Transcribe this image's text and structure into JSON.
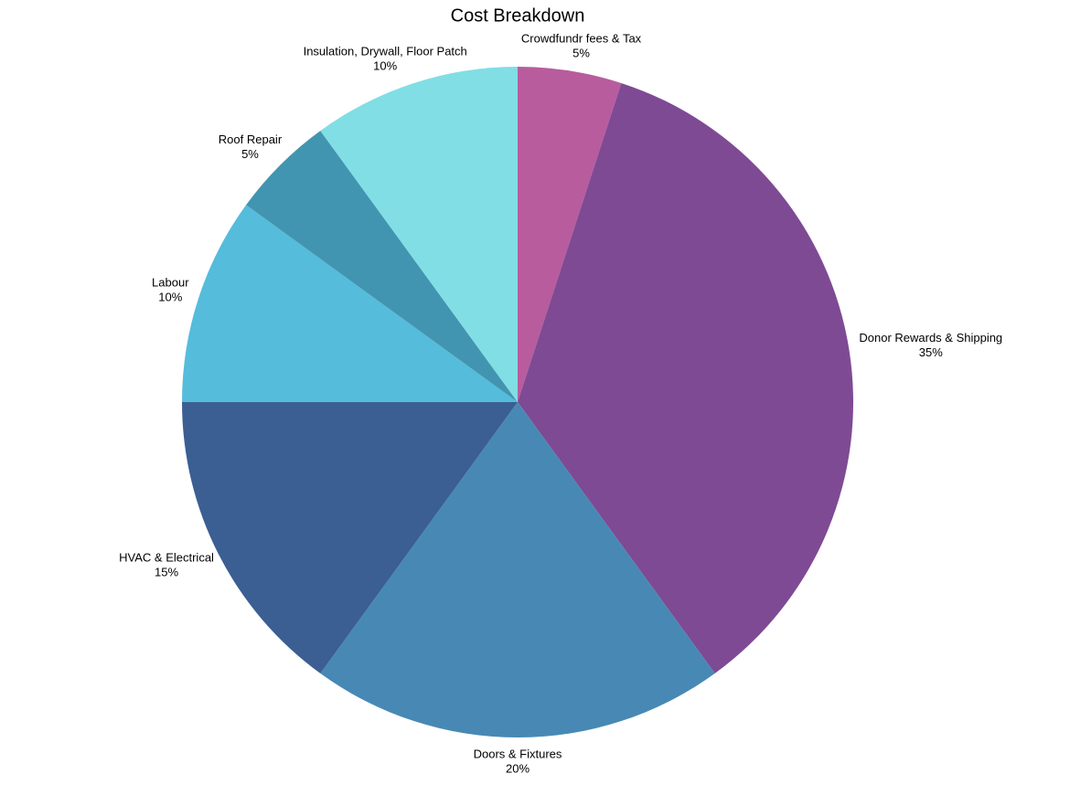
{
  "chart_data": {
    "type": "pie",
    "title": "Cost Breakdown",
    "categories": [
      "Crowdfundr fees & Tax",
      "Donor Rewards & Shipping",
      "Doors & Fixtures",
      "HVAC & Electrical",
      "Labour",
      "Roof Repair",
      "Insulation, Drywall, Floor Patch"
    ],
    "values": [
      5,
      35,
      20,
      15,
      10,
      5,
      10
    ],
    "value_labels": [
      "5%",
      "35%",
      "20%",
      "15%",
      "10%",
      "5%",
      "10%"
    ],
    "colors": [
      "#b85c9e",
      "#7e4a94",
      "#4789b4",
      "#3b5e93",
      "#55bcdb",
      "#4295b0",
      "#80dee4"
    ]
  }
}
